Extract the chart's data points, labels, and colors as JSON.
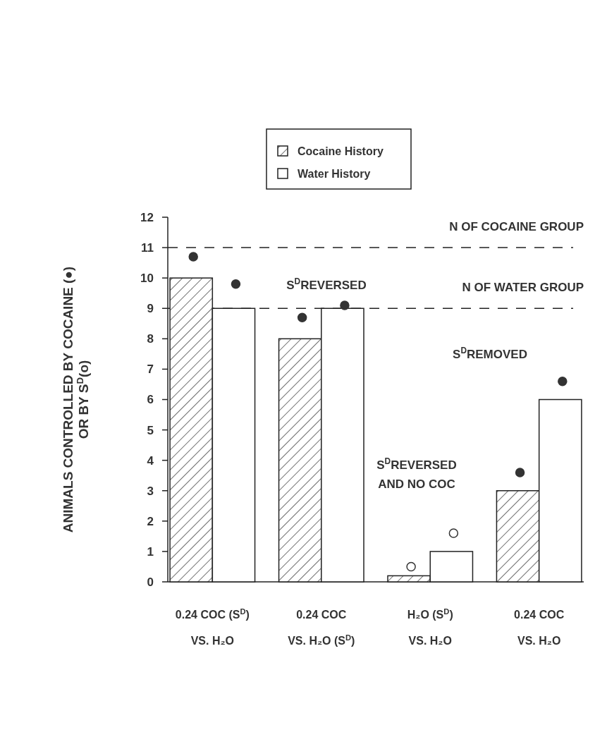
{
  "chart_data": {
    "type": "bar",
    "ylabel": "ANIMALS CONTROLLED BY COCAINE (●)\nOR BY S$^{D}$(o)",
    "categories": [
      "0.24 COC (S$^{D}$)\nVS. H₂O",
      "0.24 COC\nVS. H₂O (S$^{D}$)",
      "H₂O (S$^{D}$)\nVS. H₂O",
      "0.24 COC\nVS. H₂O"
    ],
    "series": [
      {
        "name": "Cocaine History",
        "color": "#222222",
        "values": [
          10,
          8,
          0.2,
          3
        ]
      },
      {
        "name": "Water History",
        "color": "#ffffff",
        "values": [
          9,
          9,
          1,
          6
        ]
      },
      {
        "type": "scatter",
        "color": "#333333",
        "values": [
          10.7,
          8.7,
          null,
          3.6
        ]
      },
      {
        "type": "scatter",
        "color": "#333333",
        "values": [
          9.8,
          9.1,
          null,
          6.6
        ]
      },
      {
        "type": "scatter",
        "color": "#ffffff",
        "values": [
          null,
          null,
          0.5,
          null
        ]
      },
      {
        "type": "scatter",
        "color": "#ffffff",
        "values": [
          null,
          null,
          1.6,
          null
        ]
      }
    ],
    "ylim": [
      0,
      12
    ],
    "yticks": [
      0,
      1,
      2,
      3,
      4,
      5,
      6,
      7,
      8,
      9,
      10,
      11,
      12
    ],
    "ref_lines": [
      {
        "axis": "y",
        "value": 11,
        "label": "N OF COCAINE GROUP",
        "line_style": "dashed"
      },
      {
        "axis": "y",
        "value": 9,
        "label": "N OF WATER GROUP",
        "line_style": "dashed"
      }
    ],
    "annotations": [
      "S$^{D}$REVERSED",
      "S$^{D}$REVERSED\nAND NO COC",
      "S$^{D}$REMOVED"
    ],
    "legend": "top",
    "grid": false,
    "marker": "circle"
  }
}
